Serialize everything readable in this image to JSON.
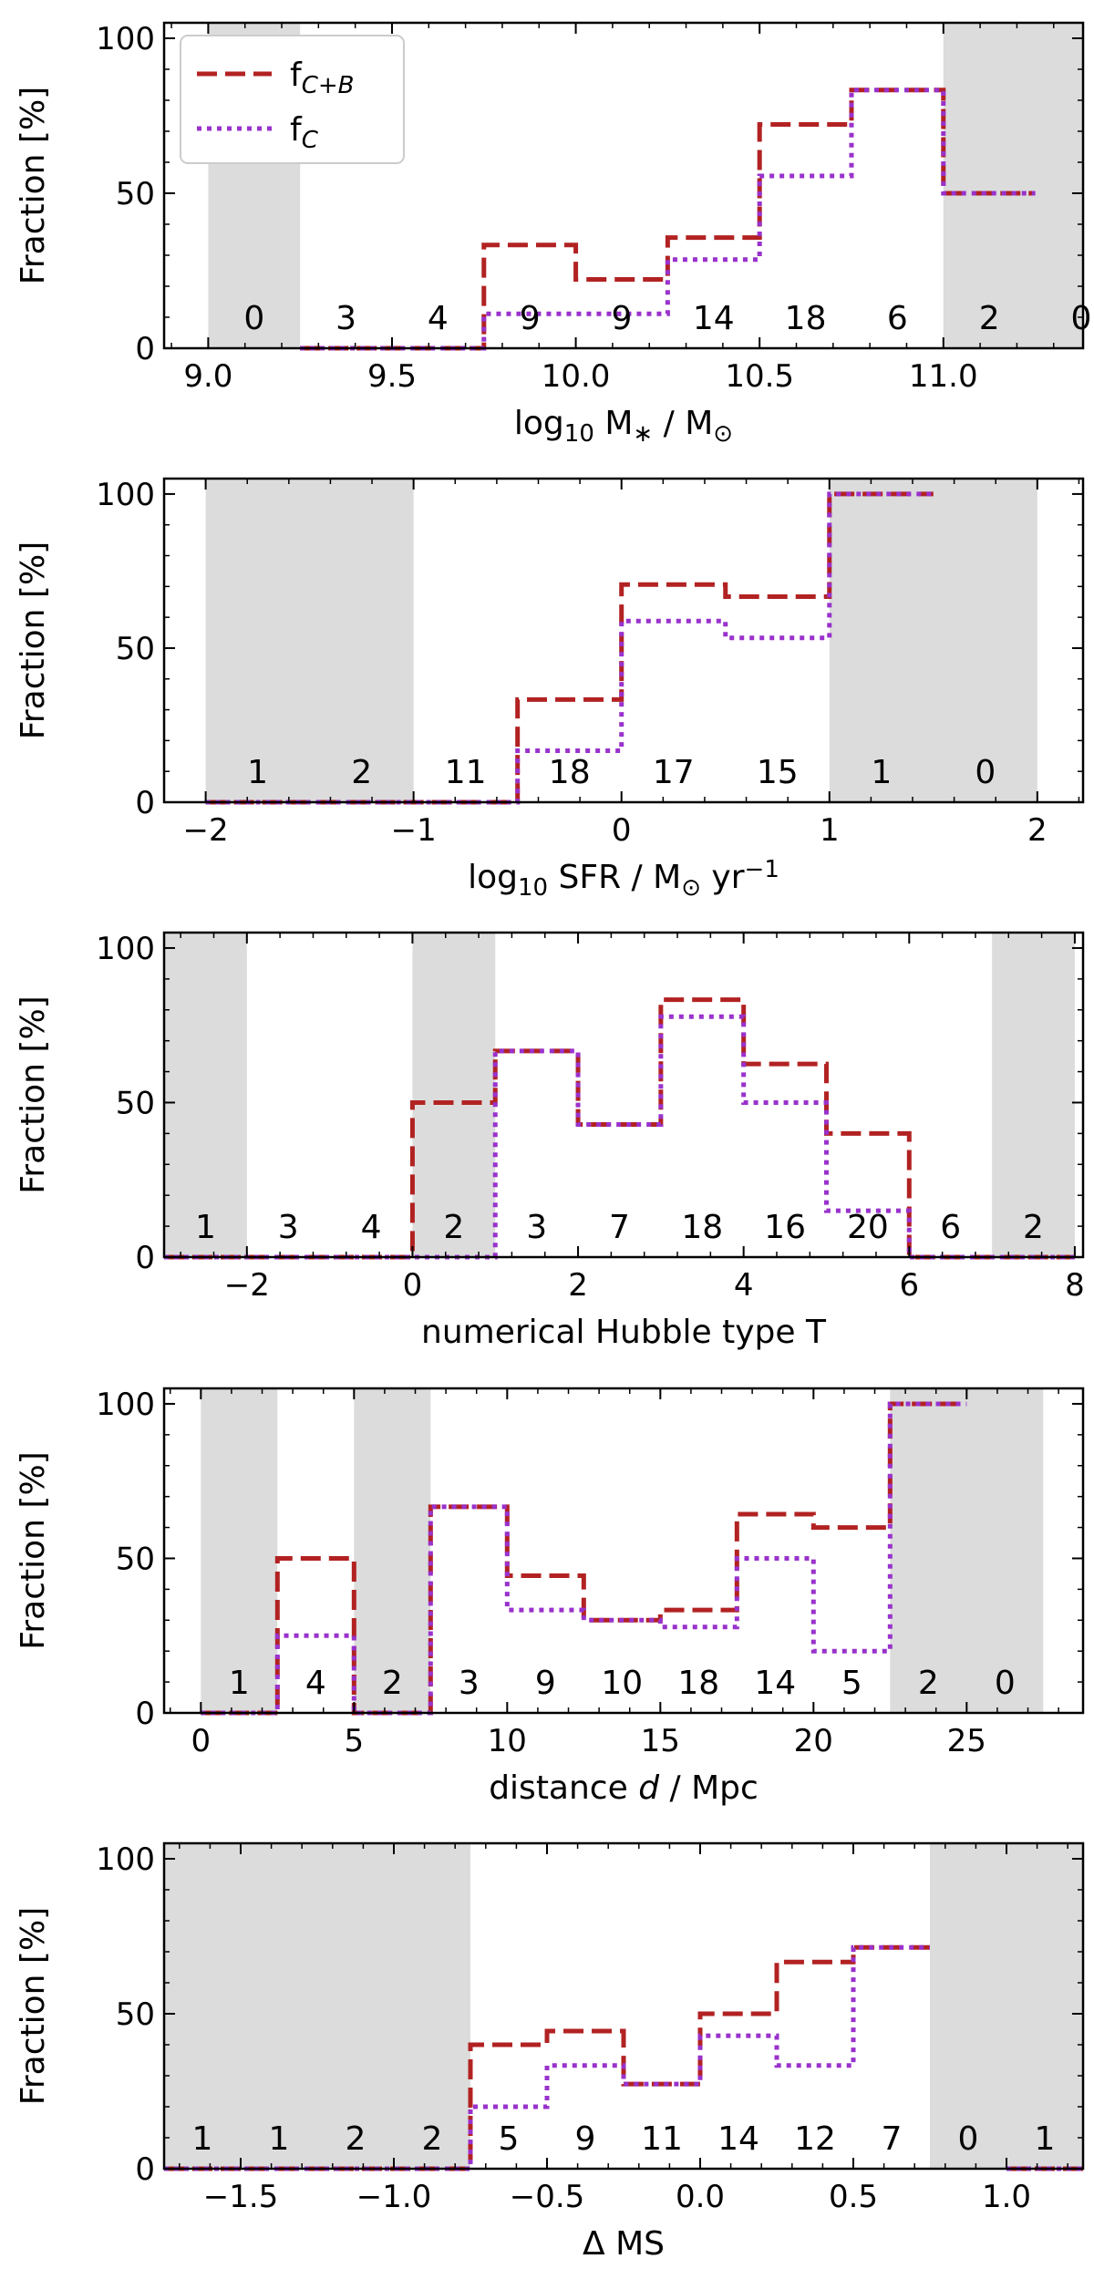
{
  "chart_data": [
    {
      "type": "step",
      "ylabel": "Fraction [%]",
      "xlabel_parts": [
        [
          "log",
          false
        ],
        [
          "10",
          "sub"
        ],
        [
          " M",
          false
        ],
        [
          "∗",
          "sub"
        ],
        [
          " / M",
          false
        ],
        [
          "⊙",
          "sub"
        ]
      ],
      "xlim": [
        8.88,
        11.38
      ],
      "ylim": [
        0,
        105
      ],
      "xticks": [
        9.0,
        9.5,
        10.0,
        10.5,
        11.0
      ],
      "xtick_labels": [
        "9.0",
        "9.5",
        "10.0",
        "10.5",
        "11.0"
      ],
      "yticks": [
        0,
        50,
        100
      ],
      "ytick_labels": [
        "0",
        "50",
        "100"
      ],
      "bin_edges": [
        9.0,
        9.25,
        9.5,
        9.75,
        10.0,
        10.25,
        10.5,
        10.75,
        11.0,
        11.25,
        11.5
      ],
      "shaded_ranges": [
        [
          9.0,
          9.25
        ],
        [
          11.0,
          11.5
        ]
      ],
      "counts": [
        "0",
        "3",
        "4",
        "9",
        "9",
        "14",
        "18",
        "6",
        "2",
        "0"
      ],
      "legend": {
        "position": "top-left",
        "entries": [
          {
            "label_main": "f",
            "label_sub": "C+B",
            "style": "dashed"
          },
          {
            "label_main": "f",
            "label_sub": "C",
            "style": "dotted"
          }
        ]
      },
      "series": [
        {
          "style": "dashed",
          "color": "#b22222",
          "values": [
            null,
            0,
            0,
            33.3,
            22.2,
            35.7,
            72.2,
            83.3,
            50,
            null
          ]
        },
        {
          "style": "dotted",
          "color": "#9932cc",
          "values": [
            null,
            0,
            0,
            11.1,
            11.1,
            28.6,
            55.6,
            83.3,
            50,
            null
          ]
        }
      ]
    },
    {
      "type": "step",
      "ylabel": "Fraction [%]",
      "xlabel_parts": [
        [
          "log",
          false
        ],
        [
          "10",
          "sub"
        ],
        [
          " SFR / M",
          false
        ],
        [
          "⊙",
          "sub"
        ],
        [
          " yr",
          false
        ],
        [
          "−1",
          "sup"
        ]
      ],
      "xlim": [
        -2.2,
        2.22
      ],
      "ylim": [
        0,
        105
      ],
      "xticks": [
        -2,
        -1,
        0,
        1,
        2
      ],
      "xtick_labels": [
        "−2",
        "−1",
        "0",
        "1",
        "2"
      ],
      "yticks": [
        0,
        50,
        100
      ],
      "ytick_labels": [
        "0",
        "50",
        "100"
      ],
      "bin_edges": [
        -2.0,
        -1.5,
        -1.0,
        -0.5,
        0.0,
        0.5,
        1.0,
        1.5,
        2.0
      ],
      "shaded_ranges": [
        [
          -2.0,
          -1.0
        ],
        [
          1.0,
          2.0
        ]
      ],
      "counts": [
        "1",
        "2",
        "11",
        "18",
        "17",
        "15",
        "1",
        "0"
      ],
      "series": [
        {
          "style": "dashed",
          "color": "#b22222",
          "values": [
            0,
            0,
            0,
            33.3,
            70.6,
            66.7,
            100,
            null
          ]
        },
        {
          "style": "dotted",
          "color": "#9932cc",
          "values": [
            0,
            0,
            0,
            16.7,
            58.8,
            53.3,
            100,
            null
          ]
        }
      ]
    },
    {
      "type": "step",
      "ylabel": "Fraction [%]",
      "xlabel_parts": [
        [
          "numerical Hubble type T",
          false
        ]
      ],
      "xlim": [
        -3.0,
        8.1
      ],
      "ylim": [
        0,
        105
      ],
      "xticks": [
        -2,
        0,
        2,
        4,
        6,
        8
      ],
      "xtick_labels": [
        "−2",
        "0",
        "2",
        "4",
        "6",
        "8"
      ],
      "yticks": [
        0,
        50,
        100
      ],
      "ytick_labels": [
        "0",
        "50",
        "100"
      ],
      "bin_edges": [
        -3,
        -2,
        -1,
        0,
        1,
        2,
        3,
        4,
        5,
        6,
        7,
        8
      ],
      "shaded_ranges": [
        [
          -3,
          -2
        ],
        [
          0,
          1
        ],
        [
          7,
          8
        ]
      ],
      "counts": [
        "1",
        "3",
        "4",
        "2",
        "3",
        "7",
        "18",
        "16",
        "20",
        "6",
        "2"
      ],
      "series": [
        {
          "style": "dashed",
          "color": "#b22222",
          "values": [
            0,
            0,
            0,
            50,
            66.7,
            42.9,
            83.3,
            62.5,
            40,
            0,
            0
          ]
        },
        {
          "style": "dotted",
          "color": "#9932cc",
          "values": [
            0,
            0,
            0,
            0,
            66.7,
            42.9,
            77.8,
            50,
            15,
            0,
            0
          ]
        }
      ]
    },
    {
      "type": "step",
      "ylabel": "Fraction [%]",
      "xlabel_parts": [
        [
          "distance ",
          false
        ],
        [
          "d",
          "italic"
        ],
        [
          " / Mpc",
          false
        ]
      ],
      "xlim": [
        -1.2,
        28.8
      ],
      "ylim": [
        0,
        105
      ],
      "xticks": [
        0,
        5,
        10,
        15,
        20,
        25
      ],
      "xtick_labels": [
        "0",
        "5",
        "10",
        "15",
        "20",
        "25"
      ],
      "yticks": [
        0,
        50,
        100
      ],
      "ytick_labels": [
        "0",
        "50",
        "100"
      ],
      "bin_edges": [
        0,
        2.5,
        5,
        7.5,
        10,
        12.5,
        15,
        17.5,
        20,
        22.5,
        25,
        27.5
      ],
      "shaded_ranges": [
        [
          0,
          2.5
        ],
        [
          5,
          7.5
        ],
        [
          22.5,
          27.5
        ]
      ],
      "counts": [
        "1",
        "4",
        "2",
        "3",
        "9",
        "10",
        "18",
        "14",
        "5",
        "2",
        "0"
      ],
      "series": [
        {
          "style": "dashed",
          "color": "#b22222",
          "values": [
            0,
            50,
            0,
            66.7,
            44.4,
            30,
            33.3,
            64.3,
            60,
            100,
            null
          ]
        },
        {
          "style": "dotted",
          "color": "#9932cc",
          "values": [
            0,
            25,
            0,
            66.7,
            33.3,
            30,
            27.8,
            50,
            20,
            100,
            null
          ]
        }
      ]
    },
    {
      "type": "step",
      "ylabel": "Fraction [%]",
      "xlabel_parts": [
        [
          "Δ MS",
          false
        ]
      ],
      "xlim": [
        -1.75,
        1.25
      ],
      "ylim": [
        0,
        105
      ],
      "xticks": [
        -1.5,
        -1.0,
        -0.5,
        0.0,
        0.5,
        1.0
      ],
      "xtick_labels": [
        "−1.5",
        "−1.0",
        "−0.5",
        "0.0",
        "0.5",
        "1.0"
      ],
      "yticks": [
        0,
        50,
        100
      ],
      "ytick_labels": [
        "0",
        "50",
        "100"
      ],
      "bin_edges": [
        -1.75,
        -1.5,
        -1.25,
        -1.0,
        -0.75,
        -0.5,
        -0.25,
        0.0,
        0.25,
        0.5,
        0.75,
        1.0,
        1.25
      ],
      "shaded_ranges": [
        [
          -1.75,
          -0.75
        ],
        [
          0.75,
          1.25
        ]
      ],
      "counts": [
        "1",
        "1",
        "2",
        "2",
        "5",
        "9",
        "11",
        "14",
        "12",
        "7",
        "0",
        "1"
      ],
      "series": [
        {
          "style": "dashed",
          "color": "#b22222",
          "values": [
            0,
            0,
            0,
            0,
            40,
            44.4,
            27.3,
            50,
            66.7,
            71.4,
            null,
            0
          ]
        },
        {
          "style": "dotted",
          "color": "#9932cc",
          "values": [
            0,
            0,
            0,
            0,
            20,
            33.3,
            27.3,
            42.9,
            33.3,
            71.4,
            null,
            0
          ]
        }
      ]
    }
  ]
}
